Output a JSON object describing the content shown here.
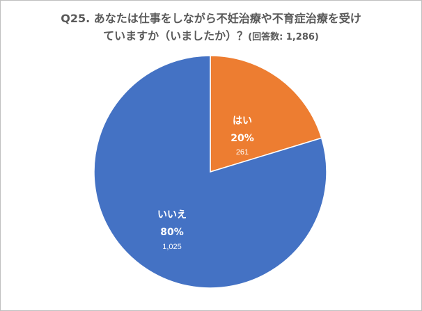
{
  "header": {
    "title_line1": "Q25. あなたは仕事をしながら不妊治療や不育症治療を受け",
    "title_line2": "ていますか（いましたか）？",
    "respondents": "(回答数: 1,286)"
  },
  "chart_data": {
    "type": "pie",
    "title": "Q25. あなたは仕事をしながら不妊治療や不育症治療を受けていますか（いましたか）？(回答数: 1,286)",
    "total": "1,286",
    "start_angle": "12 o'clock",
    "direction": "clockwise",
    "slices": [
      {
        "label": "はい",
        "percent": 20,
        "percent_label": "20%",
        "count": 261,
        "count_label": "261",
        "color": "#ed7d31"
      },
      {
        "label": "いいえ",
        "percent": 80,
        "percent_label": "80%",
        "count": 1025,
        "count_label": "1,025",
        "color": "#4472c4"
      }
    ]
  }
}
